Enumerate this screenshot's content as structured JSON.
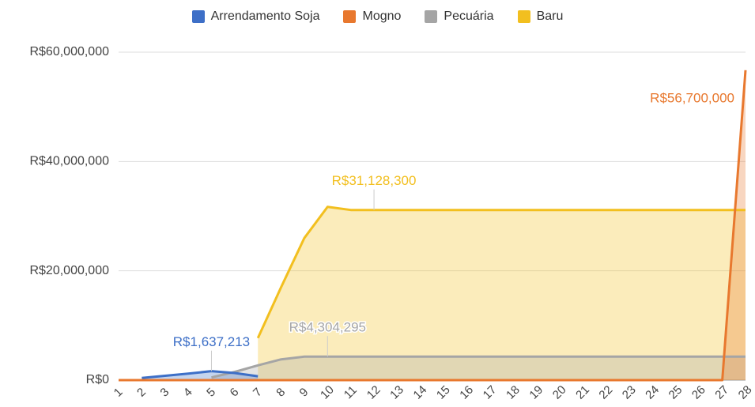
{
  "chart_data": {
    "type": "area",
    "categories": [
      "1",
      "2",
      "3",
      "4",
      "5",
      "6",
      "7",
      "8",
      "9",
      "10",
      "11",
      "12",
      "13",
      "14",
      "15",
      "16",
      "17",
      "18",
      "19",
      "20",
      "21",
      "22",
      "23",
      "24",
      "25",
      "26",
      "27",
      "28"
    ],
    "series": [
      {
        "name": "Arrendamento Soja",
        "color": "#3d6fc7",
        "values": [
          null,
          400000,
          800000,
          1200000,
          1637213,
          1300000,
          700000,
          null,
          null,
          null,
          null,
          null,
          null,
          null,
          null,
          null,
          null,
          null,
          null,
          null,
          null,
          null,
          null,
          null,
          null,
          null,
          null,
          null
        ],
        "value_labels": [
          null,
          null,
          null,
          null,
          "R$1,637,213",
          null,
          null,
          null,
          null,
          null,
          null,
          null,
          null,
          null,
          null,
          null,
          null,
          null,
          null,
          null,
          null,
          null,
          null,
          null,
          null,
          null,
          null,
          null
        ]
      },
      {
        "name": "Mogno",
        "color": "#e8782e",
        "values": [
          0,
          0,
          0,
          0,
          0,
          0,
          0,
          0,
          0,
          0,
          0,
          0,
          0,
          0,
          0,
          0,
          0,
          0,
          0,
          0,
          0,
          0,
          0,
          0,
          0,
          0,
          0,
          56700000
        ],
        "value_labels": [
          null,
          null,
          null,
          null,
          null,
          null,
          null,
          null,
          null,
          null,
          null,
          null,
          null,
          null,
          null,
          null,
          null,
          null,
          null,
          null,
          null,
          null,
          null,
          null,
          null,
          null,
          null,
          "R$56,700,000"
        ]
      },
      {
        "name": "Pecuária",
        "color": "#a5a5a5",
        "values": [
          null,
          null,
          null,
          null,
          500000,
          1500000,
          2700000,
          3800000,
          4304295,
          4304295,
          4304295,
          4304295,
          4304295,
          4304295,
          4304295,
          4304295,
          4304295,
          4304295,
          4304295,
          4304295,
          4304295,
          4304295,
          4304295,
          4304295,
          4304295,
          4304295,
          4304295,
          4304295
        ],
        "value_labels": [
          null,
          null,
          null,
          null,
          null,
          null,
          null,
          null,
          null,
          "R$4,304,295",
          null,
          null,
          null,
          null,
          null,
          null,
          null,
          null,
          null,
          null,
          null,
          null,
          null,
          null,
          null,
          null,
          null,
          null
        ]
      },
      {
        "name": "Baru",
        "color": "#f2bf1f",
        "values": [
          null,
          null,
          null,
          null,
          null,
          null,
          7700000,
          17000000,
          26000000,
          31700000,
          31128300,
          31128300,
          31128300,
          31128300,
          31128300,
          31128300,
          31128300,
          31128300,
          31128300,
          31128300,
          31128300,
          31128300,
          31128300,
          31128300,
          31128300,
          31128300,
          31128300,
          31128300
        ],
        "value_labels": [
          null,
          null,
          null,
          null,
          null,
          null,
          null,
          null,
          null,
          null,
          null,
          "R$31,128,300",
          null,
          null,
          null,
          null,
          null,
          null,
          null,
          null,
          null,
          null,
          null,
          null,
          null,
          null,
          null,
          null
        ]
      }
    ],
    "ylim": [
      0,
      60000000
    ],
    "yticks": [
      {
        "value": 0,
        "label": "R$0"
      },
      {
        "value": 20000000,
        "label": "R$20,000,000"
      },
      {
        "value": 40000000,
        "label": "R$40,000,000"
      },
      {
        "value": 60000000,
        "label": "R$60,000,000"
      }
    ],
    "grid": true,
    "legend": "top"
  }
}
